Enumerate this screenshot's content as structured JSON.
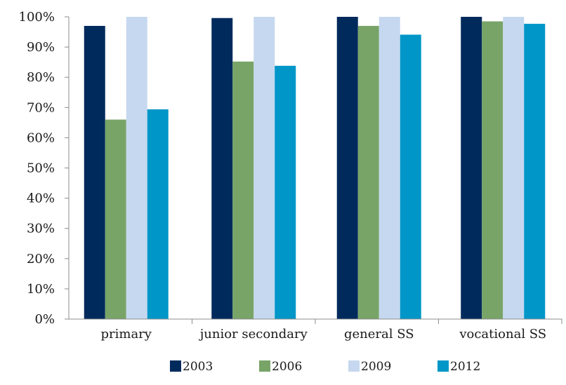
{
  "chart_data": {
    "type": "bar",
    "categories": [
      "primary",
      "junior secondary",
      "general SS",
      "vocational SS"
    ],
    "series": [
      {
        "name": "2003",
        "color": "#002a5c",
        "values": [
          97,
          99.6,
          100,
          100
        ]
      },
      {
        "name": "2006",
        "color": "#78a468",
        "values": [
          66,
          85.2,
          97,
          98.5
        ]
      },
      {
        "name": "2009",
        "color": "#c6d8ef",
        "values": [
          100,
          100,
          100,
          100
        ]
      },
      {
        "name": "2012",
        "color": "#0096c8",
        "values": [
          69.4,
          83.8,
          94.1,
          97.7
        ]
      }
    ],
    "y_ticks": [
      "0%",
      "10%",
      "20%",
      "30%",
      "40%",
      "50%",
      "60%",
      "70%",
      "80%",
      "90%",
      "100%"
    ],
    "ylim": [
      0,
      100
    ],
    "title": "",
    "xlabel": "",
    "ylabel": "",
    "grid": false,
    "legend_position": "bottom"
  }
}
